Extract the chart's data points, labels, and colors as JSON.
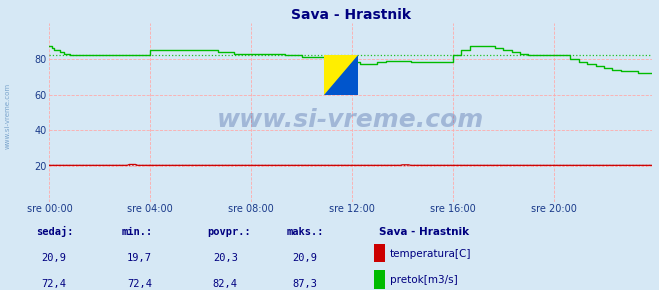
{
  "title": "Sava - Hrastnik",
  "title_color": "#000080",
  "bg_color": "#d6e8f5",
  "plot_bg_color": "#d6e8f5",
  "grid_color_h": "#ffaaaa",
  "grid_color_v": "#ffaaaa",
  "x_tick_labels": [
    "sre 00:00",
    "sre 04:00",
    "sre 08:00",
    "sre 12:00",
    "sre 16:00",
    "sre 20:00"
  ],
  "x_tick_positions": [
    0,
    48,
    96,
    144,
    192,
    240
  ],
  "ylim": [
    0,
    100
  ],
  "yticks": [
    20,
    40,
    60,
    80
  ],
  "temp_color": "#cc0000",
  "flow_color": "#00bb00",
  "avg_flow_line": 82.4,
  "avg_temp_line": 20.3,
  "watermark": "www.si-vreme.com",
  "watermark_color": "#1a3a8a",
  "watermark_alpha": 0.28,
  "legend_title": "Sava - Hrastnik",
  "legend_items": [
    {
      "label": "temperatura[C]",
      "color": "#cc0000"
    },
    {
      "label": "pretok[m3/s]",
      "color": "#00bb00"
    }
  ],
  "stats_headers": [
    "sedaj:",
    "min.:",
    "povpr.:",
    "maks.:"
  ],
  "stats_temp": [
    "20,9",
    "19,7",
    "20,3",
    "20,9"
  ],
  "stats_flow": [
    "72,4",
    "72,4",
    "82,4",
    "87,3"
  ],
  "n_points": 288,
  "temp_base": 20.3,
  "flow_profile": [
    87,
    86,
    85,
    85,
    85,
    84,
    84,
    83,
    83,
    83,
    82,
    82,
    82,
    82,
    82,
    82,
    82,
    82,
    82,
    82,
    82,
    82,
    82,
    82,
    82,
    82,
    82,
    82,
    82,
    82,
    82,
    82,
    82,
    82,
    82,
    82,
    82,
    82,
    82,
    82,
    82,
    82,
    82,
    82,
    82,
    82,
    82,
    82,
    85,
    85,
    85,
    85,
    85,
    85,
    85,
    85,
    85,
    85,
    85,
    85,
    85,
    85,
    85,
    85,
    85,
    85,
    85,
    85,
    85,
    85,
    85,
    85,
    85,
    85,
    85,
    85,
    85,
    85,
    85,
    85,
    84,
    84,
    84,
    84,
    84,
    84,
    84,
    84,
    83,
    83,
    83,
    83,
    83,
    83,
    83,
    83,
    83,
    83,
    83,
    83,
    83,
    83,
    83,
    83,
    83,
    83,
    83,
    83,
    83,
    83,
    83,
    83,
    82,
    82,
    82,
    82,
    82,
    82,
    82,
    82,
    81,
    81,
    81,
    81,
    81,
    81,
    81,
    81,
    81,
    81,
    81,
    81,
    80,
    80,
    80,
    80,
    80,
    80,
    80,
    80,
    79,
    79,
    79,
    79,
    78,
    78,
    78,
    78,
    77,
    77,
    77,
    77,
    77,
    77,
    77,
    77,
    78,
    78,
    78,
    78,
    79,
    79,
    79,
    79,
    79,
    79,
    79,
    79,
    79,
    79,
    79,
    79,
    78,
    78,
    78,
    78,
    78,
    78,
    78,
    78,
    78,
    78,
    78,
    78,
    78,
    78,
    78,
    78,
    78,
    78,
    78,
    78,
    82,
    82,
    82,
    82,
    85,
    85,
    85,
    85,
    87,
    87,
    87,
    87,
    87,
    87,
    87,
    87,
    87,
    87,
    87,
    87,
    86,
    86,
    86,
    86,
    85,
    85,
    85,
    85,
    84,
    84,
    84,
    84,
    83,
    83,
    83,
    83,
    82,
    82,
    82,
    82,
    82,
    82,
    82,
    82,
    82,
    82,
    82,
    82,
    82,
    82,
    82,
    82,
    82,
    82,
    82,
    82,
    80,
    80,
    80,
    80,
    78,
    78,
    78,
    78,
    77,
    77,
    77,
    77,
    76,
    76,
    76,
    76,
    75,
    75,
    75,
    75,
    74,
    74,
    74,
    74,
    73,
    73,
    73,
    73,
    73,
    73,
    73,
    73,
    72,
    72,
    72,
    72,
    72,
    72,
    72,
    72
  ]
}
